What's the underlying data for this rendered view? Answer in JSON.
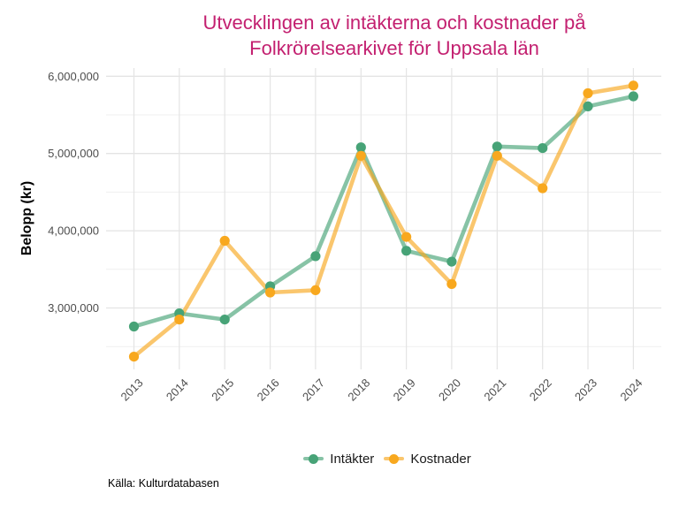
{
  "title": {
    "lines": [
      "Utvecklingen av intäkterna och kostnader på",
      "Folkrörelsearkivet för Uppsala län"
    ]
  },
  "source": "Källa: Kulturdatabasen",
  "colors": {
    "title": "#C32070",
    "intakter": "#47A377",
    "kostnader": "#F8A81E",
    "axis_text": "#4D4D4D",
    "grid_major": "#E4E4E4",
    "grid_minor": "#EFEFEF",
    "legend_text": "#1A1A1A",
    "background": "#FFFFFF"
  },
  "chart_data": {
    "type": "line",
    "title": "Utvecklingen av intäkterna och kostnader på Folkrörelsearkivet för Uppsala län",
    "xlabel": "",
    "ylabel": "Belopp (kr)",
    "categories": [
      "2013",
      "2014",
      "2015",
      "2016",
      "2017",
      "2018",
      "2019",
      "2020",
      "2021",
      "2022",
      "2023",
      "2024"
    ],
    "series": [
      {
        "id": "intakter",
        "name": "Intäkter",
        "color": "#47A377",
        "values": [
          2760000,
          2930000,
          2850000,
          3280000,
          3670000,
          5080000,
          3740000,
          3600000,
          5090000,
          5070000,
          5610000,
          5740000
        ]
      },
      {
        "id": "kostnader",
        "name": "Kostnader",
        "color": "#F8A81E",
        "values": [
          2370000,
          2850000,
          3870000,
          3200000,
          3230000,
          4970000,
          3920000,
          3310000,
          4970000,
          4550000,
          5780000,
          5880000
        ]
      }
    ],
    "yticks": [
      3000000,
      4000000,
      5000000,
      6000000
    ],
    "yminor_step": 500000,
    "ylim": [
      2200000,
      6130000
    ],
    "grid": true,
    "legend_position": "bottom"
  }
}
